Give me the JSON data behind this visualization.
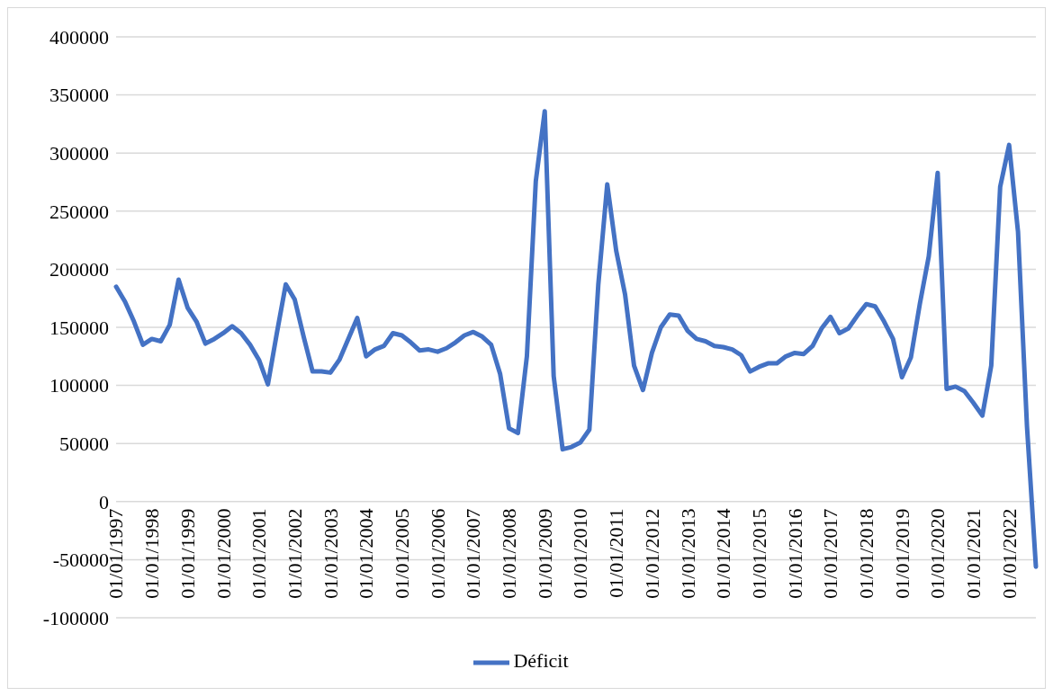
{
  "chart_data": {
    "type": "line",
    "categories": [
      "01/01/1997",
      null,
      null,
      null,
      "01/01/1998",
      null,
      null,
      null,
      "01/01/1999",
      null,
      null,
      null,
      "01/01/2000",
      null,
      null,
      null,
      "01/01/2001",
      null,
      null,
      null,
      "01/01/2002",
      null,
      null,
      null,
      "01/01/2003",
      null,
      null,
      null,
      "01/01/2004",
      null,
      null,
      null,
      "01/01/2005",
      null,
      null,
      null,
      "01/01/2006",
      null,
      null,
      null,
      "01/01/2007",
      null,
      null,
      null,
      "01/01/2008",
      null,
      null,
      null,
      "01/01/2009",
      null,
      null,
      null,
      "01/01/2010",
      null,
      null,
      null,
      "01/01/2011",
      null,
      null,
      null,
      "01/01/2012",
      null,
      null,
      null,
      "01/01/2013",
      null,
      null,
      null,
      "01/01/2014",
      null,
      null,
      null,
      "01/01/2015",
      null,
      null,
      null,
      "01/01/2016",
      null,
      null,
      null,
      "01/01/2017",
      null,
      null,
      null,
      "01/01/2018",
      null,
      null,
      null,
      "01/01/2019",
      null,
      null,
      null,
      "01/01/2020",
      null,
      null,
      null,
      "01/01/2021",
      null,
      null,
      null,
      "01/01/2022",
      null,
      null,
      null
    ],
    "series": [
      {
        "name": "Déficit",
        "color": "#4472c4",
        "values": [
          185000,
          172000,
          155000,
          135000,
          140000,
          138000,
          152000,
          191000,
          167000,
          155000,
          136000,
          140000,
          145000,
          151000,
          145000,
          135000,
          122000,
          101000,
          145000,
          187000,
          174000,
          142000,
          112000,
          112000,
          111000,
          122000,
          140000,
          158000,
          125000,
          131000,
          134000,
          145000,
          143000,
          137000,
          130000,
          131000,
          129000,
          132000,
          137000,
          143000,
          146000,
          142000,
          135000,
          110000,
          63000,
          59000,
          125000,
          276000,
          336000,
          108000,
          45000,
          47000,
          51000,
          62000,
          187000,
          273000,
          216000,
          178000,
          117000,
          96000,
          128000,
          150000,
          161000,
          160000,
          147000,
          140000,
          138000,
          134000,
          133000,
          131000,
          126000,
          112000,
          116000,
          119000,
          119000,
          125000,
          128000,
          127000,
          134000,
          149000,
          159000,
          145000,
          149000,
          160000,
          170000,
          168000,
          155000,
          140000,
          107000,
          124000,
          170000,
          211000,
          283000,
          97000,
          99000,
          95000,
          85000,
          74000,
          117000,
          271000,
          307000,
          232000,
          65000,
          -56000
        ]
      }
    ],
    "ylim": [
      -100000,
      400000
    ],
    "yticks": [
      -100000,
      -50000,
      0,
      50000,
      100000,
      150000,
      200000,
      250000,
      300000,
      350000,
      400000
    ],
    "grid": "y",
    "legend": "bottom",
    "marker": "none",
    "line_style": "solid"
  }
}
